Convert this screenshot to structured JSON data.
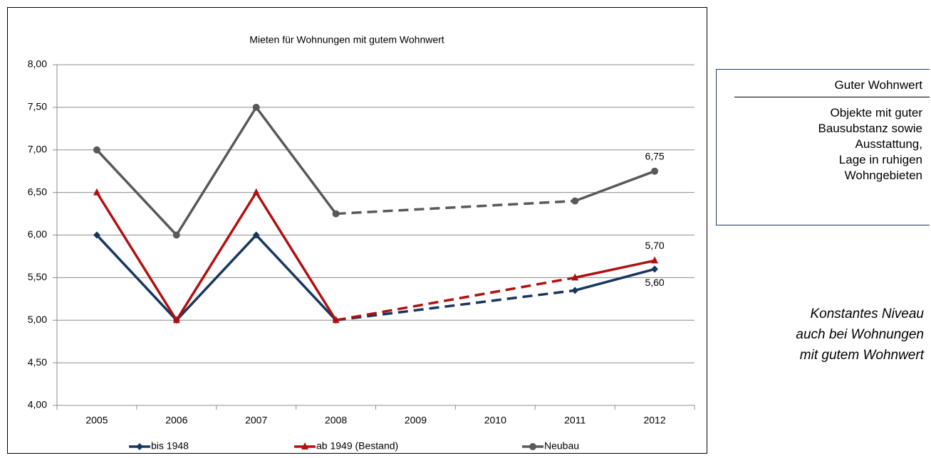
{
  "chart_data": {
    "type": "line",
    "title": "Mieten für Wohnungen mit gutem Wohnwert",
    "categories": [
      "2005",
      "2006",
      "2007",
      "2008",
      "2009",
      "2010",
      "2011",
      "2012"
    ],
    "series": [
      {
        "name": "bis 1948",
        "color": "#17375e",
        "marker": "diamond",
        "values": [
          6.0,
          5.0,
          6.0,
          5.0,
          null,
          null,
          5.35,
          5.6
        ],
        "value_labels": [
          null,
          null,
          null,
          null,
          null,
          null,
          null,
          "5,60"
        ],
        "value_label_position": "below"
      },
      {
        "name": "ab 1949 (Bestand)",
        "color": "#b01010",
        "marker": "triangle",
        "values": [
          6.5,
          5.0,
          6.5,
          5.0,
          null,
          null,
          5.5,
          5.7
        ],
        "value_labels": [
          null,
          null,
          null,
          null,
          null,
          null,
          null,
          "5,70"
        ],
        "value_label_position": "above"
      },
      {
        "name": "Neubau",
        "color": "#595959",
        "marker": "circle",
        "values": [
          7.0,
          6.0,
          7.5,
          6.25,
          null,
          null,
          6.4,
          6.75
        ],
        "value_labels": [
          null,
          null,
          null,
          null,
          null,
          null,
          null,
          "6,75"
        ],
        "value_label_position": "above"
      }
    ],
    "gap_style": "dashed",
    "ylim": [
      4,
      8
    ],
    "yticks": [
      {
        "value": 4,
        "label": "4,00"
      },
      {
        "value": 4.5,
        "label": "4,50"
      },
      {
        "value": 5,
        "label": "5,00"
      },
      {
        "value": 5.5,
        "label": "5,50"
      },
      {
        "value": 6,
        "label": "6,00"
      },
      {
        "value": 6.5,
        "label": "6,50"
      },
      {
        "value": 7,
        "label": "7,00"
      },
      {
        "value": 7.5,
        "label": "7,50"
      },
      {
        "value": 8,
        "label": "8,00"
      }
    ],
    "grid": true,
    "legend": "bottom"
  },
  "info_box": {
    "title": "Guter Wohnwert",
    "lines": [
      "Objekte mit guter",
      "Bausubstanz sowie",
      "Ausstattung,",
      "Lage in ruhigen",
      "Wohngebieten"
    ]
  },
  "note": {
    "lines": [
      "Konstantes Niveau",
      "auch bei Wohnungen",
      "mit gutem Wohnwert"
    ]
  }
}
